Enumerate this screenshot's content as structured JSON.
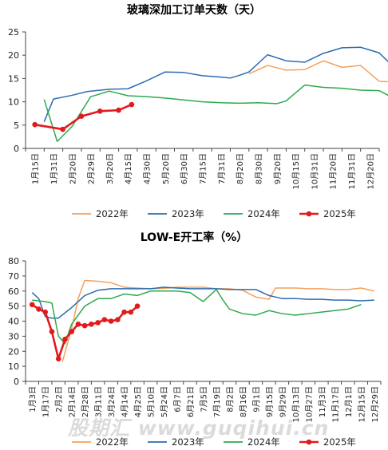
{
  "watermark": "股期汇 www.guqihui.cn",
  "chart_data": [
    {
      "type": "line",
      "title": "玻璃深加工订单天数（天）",
      "ylim": [
        0,
        25
      ],
      "yticks": [
        0,
        5,
        10,
        15,
        20,
        25
      ],
      "x_tick_labels": [
        "1月15日",
        "1月31日",
        "2月20日",
        "2月29日",
        "3月20日",
        "4月15日",
        "4月30日",
        "5月20日",
        "6月30日",
        "7月15日",
        "7月31日",
        "8月20日",
        "8月30日",
        "9月20日",
        "10月15日",
        "10月31日",
        "11月20日",
        "11月31日",
        "12月20日"
      ],
      "legend_position": "bottom",
      "series": [
        {
          "name": "2022年",
          "color": "#f4a15d",
          "x": [
            11.5,
            12.5,
            13.5,
            14.5,
            15.5,
            16.5,
            17.5,
            18.5,
            19.5
          ],
          "values": [
            16,
            17.8,
            16.8,
            16.9,
            18.8,
            17.4,
            17.8,
            14.4,
            14.2
          ]
        },
        {
          "name": "2023年",
          "color": "#2b6cb0",
          "x": [
            0.5,
            1,
            2,
            2.8,
            4,
            5,
            6,
            7,
            8,
            9,
            10,
            10.5,
            11,
            11.5,
            12.5,
            13.5,
            14.5,
            15.5,
            16.5,
            17.5,
            18.5,
            19.5
          ],
          "values": [
            5.7,
            10.6,
            11.4,
            12.2,
            12.7,
            12.8,
            14.5,
            16.4,
            16.3,
            15.6,
            15.3,
            15.1,
            15.7,
            16.4,
            20.1,
            18.8,
            18.5,
            20.4,
            21.6,
            21.7,
            20.5,
            16.6
          ]
        },
        {
          "name": "2024年",
          "color": "#2daa4f",
          "x": [
            0.5,
            1.2,
            2,
            3,
            4,
            5,
            6,
            7,
            8,
            9,
            10,
            11,
            12,
            13,
            13.5,
            14.5,
            15.5,
            16.5,
            17.5,
            18.5,
            19.5
          ],
          "values": [
            10.5,
            1.5,
            4.7,
            11.1,
            12.3,
            11.3,
            11.1,
            10.8,
            10.4,
            10.0,
            9.8,
            9.7,
            9.8,
            9.6,
            10.2,
            13.6,
            13.1,
            12.9,
            12.5,
            12.4,
            10.3
          ]
        },
        {
          "name": "2025年",
          "color": "#e31a1c",
          "x": [
            0,
            1.5,
            2.5,
            3.5,
            4.5,
            5.2
          ],
          "values": [
            5.1,
            4.1,
            6.9,
            8.0,
            8.2,
            9.4
          ]
        }
      ]
    },
    {
      "type": "line",
      "title": "LOW-E开工率（%）",
      "ylim": [
        0,
        80
      ],
      "yticks": [
        0,
        10,
        20,
        30,
        40,
        50,
        60,
        70,
        80
      ],
      "x_tick_labels": [
        "1月3日",
        "1月17日",
        "2月2日",
        "2月14日",
        "2月28日",
        "3月11日",
        "3月24日",
        "4月14日",
        "4月25日",
        "5月10日",
        "5月24日",
        "6月7日",
        "6月21日",
        "7月5日",
        "7月19日",
        "8月2日",
        "8月16日",
        "9月1日",
        "9月15日",
        "9月29日",
        "10月13日",
        "10月27日",
        "11月3日",
        "11月17日",
        "12月1日",
        "12月15日",
        "12月29日"
      ],
      "legend_position": "bottom",
      "series": [
        {
          "name": "2022年",
          "color": "#f4a15d",
          "x": [
            2.3,
            3,
            3.5,
            4,
            5,
            6,
            7,
            8,
            9,
            10,
            11,
            12,
            13,
            14,
            15,
            16,
            17,
            18,
            18.5,
            19,
            20,
            21,
            22,
            23,
            24,
            25,
            26
          ],
          "values": [
            13,
            35,
            55,
            67,
            66.5,
            65.5,
            62.5,
            62,
            61.5,
            61.7,
            62.5,
            62.5,
            62.5,
            61.5,
            61.5,
            60.5,
            56,
            54.5,
            62,
            62,
            62,
            61.5,
            61.5,
            61,
            61,
            62,
            60
          ]
        },
        {
          "name": "2023年",
          "color": "#2b6cb0",
          "x": [
            0,
            0.5,
            1,
            1.5,
            2,
            3,
            4,
            5,
            6,
            7,
            8,
            9,
            10,
            11,
            12,
            13,
            14,
            15,
            16,
            17,
            18,
            19,
            20,
            21,
            22,
            23,
            24,
            25,
            26
          ],
          "values": [
            59,
            55,
            43,
            42,
            42,
            49,
            57,
            60.5,
            61.5,
            61.5,
            61.5,
            61.5,
            62.5,
            62,
            61.5,
            61.5,
            61.5,
            61,
            61,
            61,
            57,
            55,
            55,
            54.5,
            54.5,
            54,
            54,
            53.5,
            54
          ]
        },
        {
          "name": "2024年",
          "color": "#2daa4f",
          "x": [
            0,
            1,
            1.5,
            2,
            2.5,
            3,
            4,
            5,
            6,
            7,
            8,
            9,
            10,
            11,
            12,
            13,
            14,
            14.5,
            15,
            16,
            17,
            18,
            19,
            20,
            21,
            22,
            23,
            24,
            25
          ],
          "values": [
            54,
            53,
            52,
            30,
            25,
            38,
            50,
            55,
            55,
            58,
            57,
            60,
            60,
            60,
            59,
            53,
            61,
            54,
            48,
            45,
            44,
            47,
            45,
            44,
            45,
            46,
            47,
            48,
            51
          ]
        },
        {
          "name": "2025年",
          "color": "#e31a1c",
          "x": [
            0,
            0.5,
            1,
            1.5,
            2,
            2.5,
            3,
            3.5,
            4,
            4.5,
            5,
            5.5,
            6,
            6.5,
            7,
            7.5,
            8
          ],
          "values": [
            51,
            48,
            46,
            33,
            15,
            28,
            33,
            38,
            37,
            38,
            39,
            41,
            40,
            41,
            46,
            46,
            50
          ]
        }
      ]
    }
  ]
}
